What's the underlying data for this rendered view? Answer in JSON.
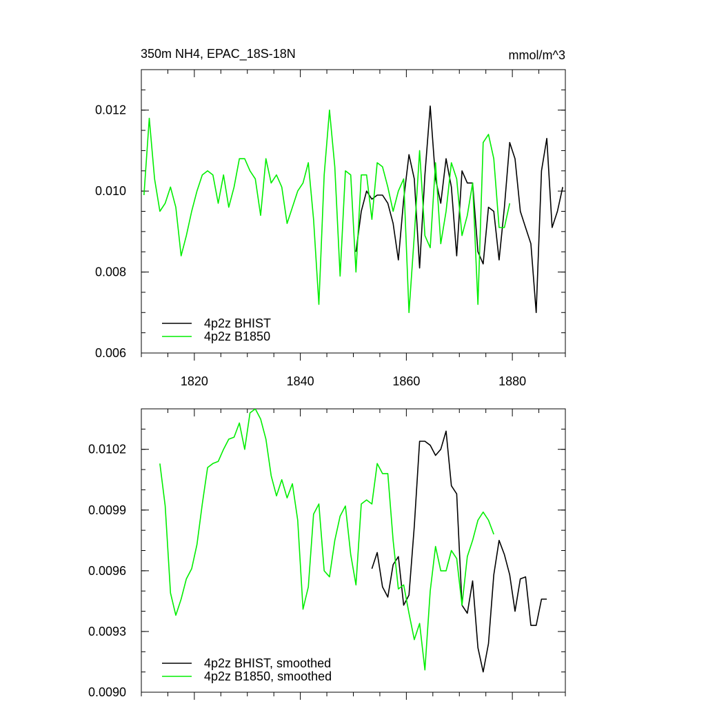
{
  "chart_data": [
    {
      "type": "line",
      "title": "350m NH4, EPAC_18S-18N",
      "units": "mmol/m^3",
      "xlim": [
        1810,
        1890
      ],
      "ylim": [
        0.006,
        0.013
      ],
      "xticks": [
        1820,
        1840,
        1860,
        1880
      ],
      "xtick_labels": [
        "1820",
        "1840",
        "1860",
        "1880"
      ],
      "yticks": [
        0.006,
        0.008,
        0.01,
        0.012
      ],
      "ytick_labels": [
        "0.006",
        "0.008",
        "0.010",
        "0.012"
      ],
      "legend_position": "bottom-left",
      "series": [
        {
          "name": "4p2z BHIST",
          "color": "#000000",
          "x": [
            1850.5,
            1851.5,
            1852.5,
            1853.5,
            1854.5,
            1855.5,
            1856.5,
            1857.5,
            1858.5,
            1859.5,
            1860.5,
            1861.5,
            1862.5,
            1863.5,
            1864.5,
            1865.5,
            1866.5,
            1867.5,
            1868.5,
            1869.5,
            1870.5,
            1871.5,
            1872.5,
            1873.5,
            1874.5,
            1875.5,
            1876.5,
            1877.5,
            1878.5,
            1879.5,
            1880.5,
            1881.5,
            1882.5,
            1883.5,
            1884.5,
            1885.5,
            1886.5,
            1887.5,
            1888.5,
            1889.5
          ],
          "y": [
            0.0085,
            0.0095,
            0.01,
            0.0098,
            0.0099,
            0.0099,
            0.0097,
            0.0092,
            0.0083,
            0.0098,
            0.0109,
            0.0103,
            0.0081,
            0.0104,
            0.0121,
            0.0103,
            0.0097,
            0.0108,
            0.0101,
            0.0084,
            0.0105,
            0.0102,
            0.0102,
            0.0085,
            0.0082,
            0.0096,
            0.0095,
            0.0083,
            0.0096,
            0.0112,
            0.0108,
            0.0095,
            0.0091,
            0.0087,
            0.007,
            0.0105,
            0.0113,
            0.0091,
            0.0095,
            0.0101
          ]
        },
        {
          "name": "4p2z B1850",
          "color": "#00ee00",
          "x": [
            1810.5,
            1811.5,
            1812.5,
            1813.5,
            1814.5,
            1815.5,
            1816.5,
            1817.5,
            1818.5,
            1819.5,
            1820.5,
            1821.5,
            1822.5,
            1823.5,
            1824.5,
            1825.5,
            1826.5,
            1827.5,
            1828.5,
            1829.5,
            1830.5,
            1831.5,
            1832.5,
            1833.5,
            1834.5,
            1835.5,
            1836.5,
            1837.5,
            1838.5,
            1839.5,
            1840.5,
            1841.5,
            1842.5,
            1843.5,
            1844.5,
            1845.5,
            1846.5,
            1847.5,
            1848.5,
            1849.5,
            1850.5,
            1851.5,
            1852.5,
            1853.5,
            1854.5,
            1855.5,
            1856.5,
            1857.5,
            1858.5,
            1859.5,
            1860.5,
            1861.5,
            1862.5,
            1863.5,
            1864.5,
            1865.5,
            1866.5,
            1867.5,
            1868.5,
            1869.5,
            1870.5,
            1871.5,
            1872.5,
            1873.5,
            1874.5,
            1875.5,
            1876.5,
            1877.5,
            1878.5,
            1879.5
          ],
          "y": [
            0.0099,
            0.0118,
            0.0103,
            0.0095,
            0.0097,
            0.0101,
            0.0096,
            0.0084,
            0.0089,
            0.0095,
            0.01,
            0.0104,
            0.0105,
            0.0104,
            0.0097,
            0.0104,
            0.0096,
            0.0101,
            0.0108,
            0.0108,
            0.0105,
            0.0103,
            0.0094,
            0.0108,
            0.0102,
            0.0104,
            0.0101,
            0.0092,
            0.0096,
            0.01,
            0.0102,
            0.0107,
            0.0093,
            0.0072,
            0.0104,
            0.012,
            0.0106,
            0.0079,
            0.0105,
            0.0104,
            0.008,
            0.0104,
            0.0104,
            0.0093,
            0.0107,
            0.0106,
            0.0101,
            0.0095,
            0.01,
            0.0103,
            0.007,
            0.0089,
            0.011,
            0.0089,
            0.0086,
            0.0107,
            0.0087,
            0.0095,
            0.0107,
            0.0103,
            0.0089,
            0.0094,
            0.0102,
            0.0072,
            0.0112,
            0.0114,
            0.0108,
            0.0091,
            0.0091,
            0.0097
          ]
        }
      ]
    },
    {
      "type": "line",
      "xlim": [
        1810,
        1890
      ],
      "ylim": [
        0.009,
        0.0104
      ],
      "xticks": [
        1820,
        1840,
        1860,
        1880
      ],
      "yticks": [
        0.009,
        0.0093,
        0.0096,
        0.0099,
        0.0102
      ],
      "ytick_labels": [
        "0.0090",
        "0.0093",
        "0.0096",
        "0.0099",
        "0.0102"
      ],
      "legend_position": "bottom-left",
      "series": [
        {
          "name": "4p2z BHIST, smoothed",
          "color": "#000000",
          "x": [
            1853.5,
            1854.5,
            1855.5,
            1856.5,
            1857.5,
            1858.5,
            1859.5,
            1860.5,
            1861.5,
            1862.5,
            1863.5,
            1864.5,
            1865.5,
            1866.5,
            1867.5,
            1868.5,
            1869.5,
            1870.5,
            1871.5,
            1872.5,
            1873.5,
            1874.5,
            1875.5,
            1876.5,
            1877.5,
            1878.5,
            1879.5,
            1880.5,
            1881.5,
            1882.5,
            1883.5,
            1884.5,
            1885.5,
            1886.5
          ],
          "y": [
            0.00961,
            0.00969,
            0.00952,
            0.00947,
            0.00963,
            0.00967,
            0.00943,
            0.00948,
            0.00982,
            0.01024,
            0.01024,
            0.01022,
            0.01017,
            0.0102,
            0.01029,
            0.01002,
            0.00998,
            0.00943,
            0.00939,
            0.00955,
            0.00922,
            0.0091,
            0.00924,
            0.00958,
            0.00975,
            0.00968,
            0.00958,
            0.0094,
            0.00956,
            0.00957,
            0.00933,
            0.00933,
            0.00946,
            0.00946
          ]
        },
        {
          "name": "4p2z B1850, smoothed",
          "color": "#00ee00",
          "x": [
            1813.5,
            1814.5,
            1815.5,
            1816.5,
            1817.5,
            1818.5,
            1819.5,
            1820.5,
            1821.5,
            1822.5,
            1823.5,
            1824.5,
            1825.5,
            1826.5,
            1827.5,
            1828.5,
            1829.5,
            1830.5,
            1831.5,
            1832.5,
            1833.5,
            1834.5,
            1835.5,
            1836.5,
            1837.5,
            1838.5,
            1839.5,
            1840.5,
            1841.5,
            1842.5,
            1843.5,
            1844.5,
            1845.5,
            1846.5,
            1847.5,
            1848.5,
            1849.5,
            1850.5,
            1851.5,
            1852.5,
            1853.5,
            1854.5,
            1855.5,
            1856.5,
            1857.5,
            1858.5,
            1859.5,
            1860.5,
            1861.5,
            1862.5,
            1863.5,
            1864.5,
            1865.5,
            1866.5,
            1867.5,
            1868.5,
            1869.5,
            1870.5,
            1871.5,
            1872.5,
            1873.5,
            1874.5,
            1875.5,
            1876.5
          ],
          "y": [
            0.01013,
            0.00992,
            0.00949,
            0.00938,
            0.00946,
            0.00956,
            0.00961,
            0.00973,
            0.00993,
            0.01011,
            0.01013,
            0.01014,
            0.0102,
            0.01025,
            0.01026,
            0.01033,
            0.0102,
            0.01038,
            0.0104,
            0.01035,
            0.01025,
            0.01007,
            0.00997,
            0.01005,
            0.00996,
            0.01003,
            0.00985,
            0.00941,
            0.00952,
            0.00988,
            0.00993,
            0.0096,
            0.00957,
            0.00975,
            0.00987,
            0.00992,
            0.00968,
            0.00953,
            0.00993,
            0.00995,
            0.00993,
            0.01013,
            0.01008,
            0.01008,
            0.00975,
            0.00951,
            0.00953,
            0.00939,
            0.00926,
            0.00934,
            0.00911,
            0.0095,
            0.00972,
            0.0096,
            0.0096,
            0.0097,
            0.00966,
            0.00943,
            0.00967,
            0.00975,
            0.00985,
            0.00989,
            0.00985,
            0.00978
          ]
        }
      ]
    }
  ]
}
